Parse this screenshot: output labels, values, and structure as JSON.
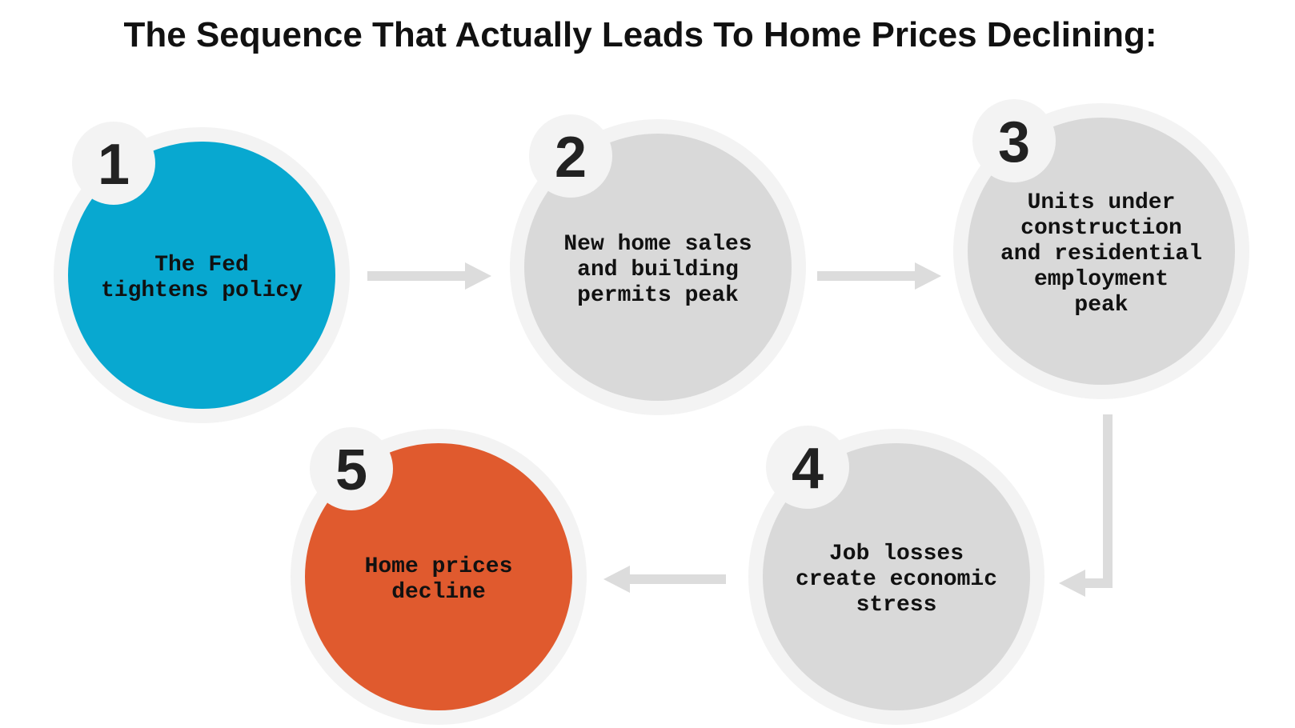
{
  "header": {
    "title": "The Sequence That Actually Leads To Home Prices Declining:"
  },
  "nodes": [
    {
      "number": "1",
      "label_lines": [
        "The Fed",
        "tightens policy"
      ]
    },
    {
      "number": "2",
      "label_lines": [
        "New home sales",
        "and building",
        "permits peak"
      ]
    },
    {
      "number": "3",
      "label_lines": [
        "Units under",
        "construction",
        "and residential",
        "employment",
        "peak"
      ]
    },
    {
      "number": "4",
      "label_lines": [
        "Job losses",
        "create economic",
        "stress"
      ]
    },
    {
      "number": "5",
      "label_lines": [
        "Home prices",
        "decline"
      ]
    }
  ]
}
